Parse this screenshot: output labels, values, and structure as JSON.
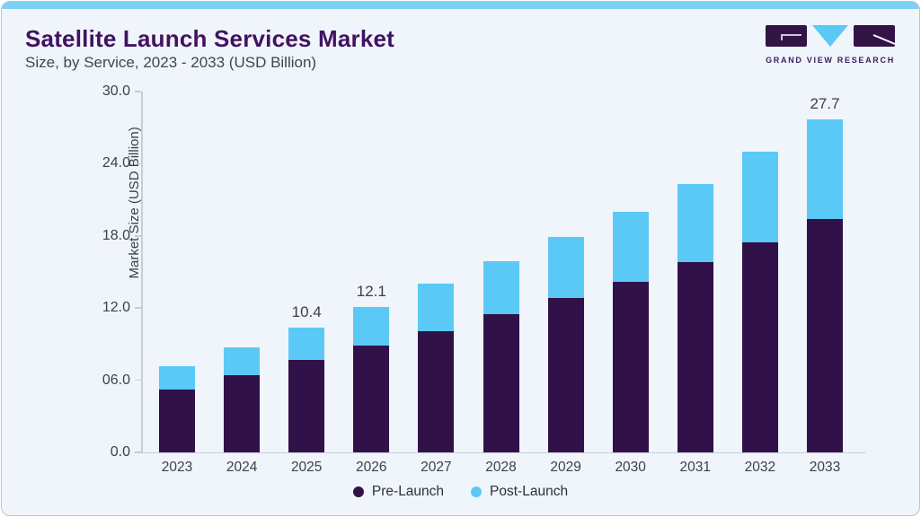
{
  "header": {
    "title": "Satellite Launch Services Market",
    "subtitle": "Size, by Service, 2023 - 2033 (USD Billion)"
  },
  "logo": {
    "brand": "GRAND VIEW RESEARCH"
  },
  "colors": {
    "pre_launch": "#311248",
    "post_launch": "#5bc9f5",
    "accent_bar": "#7dd0f3",
    "title": "#421260",
    "card_bg": "#eff5fa",
    "axis_line": "#c9ced4",
    "logo_purple": "#321446",
    "logo_blue": "#5bc9f5"
  },
  "chart_data": {
    "type": "bar",
    "stacked": true,
    "title": "Satellite Launch Services Market Size, by Service, 2023 - 2033 (USD Billion)",
    "categories": [
      "2023",
      "2024",
      "2025",
      "2026",
      "2027",
      "2028",
      "2029",
      "2030",
      "2031",
      "2032",
      "2033"
    ],
    "series": [
      {
        "name": "Pre-Launch",
        "color": "#311248",
        "values": [
          5.2,
          6.4,
          7.7,
          8.9,
          10.1,
          11.5,
          12.8,
          14.2,
          15.8,
          17.5,
          19.4
        ]
      },
      {
        "name": "Post-Launch",
        "color": "#5bc9f5",
        "values": [
          2.0,
          2.3,
          2.7,
          3.2,
          3.9,
          4.4,
          5.1,
          5.8,
          6.5,
          7.5,
          8.3
        ]
      }
    ],
    "totals": [
      7.2,
      8.7,
      10.4,
      12.1,
      14.0,
      15.9,
      17.9,
      20.0,
      22.3,
      25.0,
      27.7
    ],
    "total_labels": [
      "",
      "",
      "10.4",
      "12.1",
      "",
      "",
      "",
      "",
      "",
      "",
      "27.7"
    ],
    "xlabel": "",
    "ylabel": "Market Size (USD Billion)",
    "ylim": [
      0,
      30
    ],
    "yticks": [
      "0.0",
      "06.0",
      "12.0",
      "18.0",
      "24.0",
      "30.0"
    ],
    "grid": false,
    "legend_position": "bottom-center",
    "legend": [
      "Pre-Launch",
      "Post-Launch"
    ]
  }
}
